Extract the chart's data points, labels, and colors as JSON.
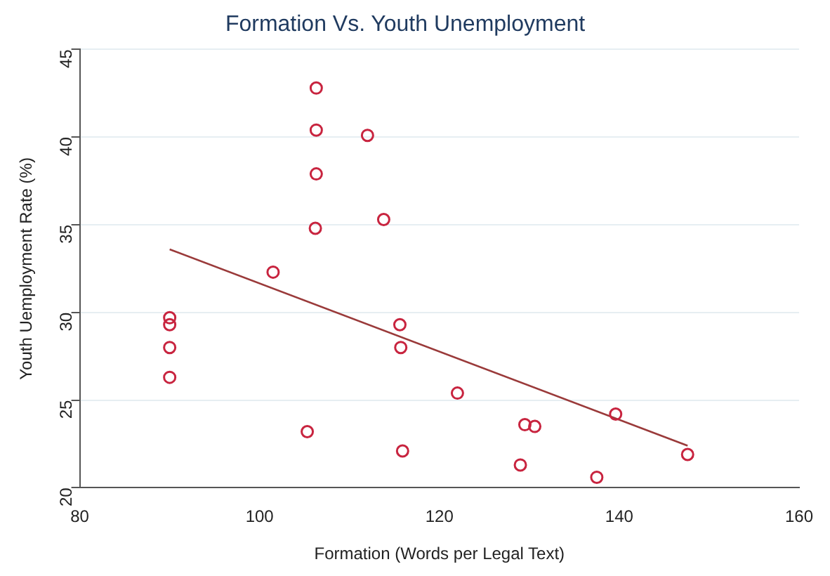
{
  "chart_data": {
    "type": "scatter",
    "title": "Formation Vs. Youth Unemployment",
    "xlabel": "Formation (Words per Legal Text)",
    "ylabel": "Youth Uemployment Rate (%)",
    "xlim": [
      80,
      160
    ],
    "xticks": [
      80,
      100,
      120,
      140,
      160
    ],
    "ylim": [
      20,
      45
    ],
    "yticks": [
      20,
      25,
      30,
      35,
      40,
      45
    ],
    "grid": "y",
    "legend": false,
    "series": [
      {
        "type": "scatter",
        "marker": "circle",
        "color": "#c8243f",
        "x": [
          90,
          90,
          90,
          90,
          101.5,
          105.3,
          106.3,
          106.3,
          106.3,
          106.2,
          112,
          113.8,
          115.6,
          115.7,
          115.9,
          122,
          129,
          129.5,
          130.6,
          137.5,
          139.6,
          147.6
        ],
        "values": [
          29.7,
          29.3,
          28.0,
          26.3,
          32.3,
          23.2,
          42.8,
          40.4,
          37.9,
          34.8,
          40.1,
          35.3,
          29.3,
          28.0,
          22.1,
          25.4,
          21.3,
          23.6,
          23.5,
          20.6,
          24.2,
          21.9
        ]
      },
      {
        "type": "line",
        "marker": "none",
        "color": "#9a3a3a",
        "x": [
          90,
          147.6
        ],
        "values": [
          33.6,
          22.4
        ]
      }
    ]
  }
}
